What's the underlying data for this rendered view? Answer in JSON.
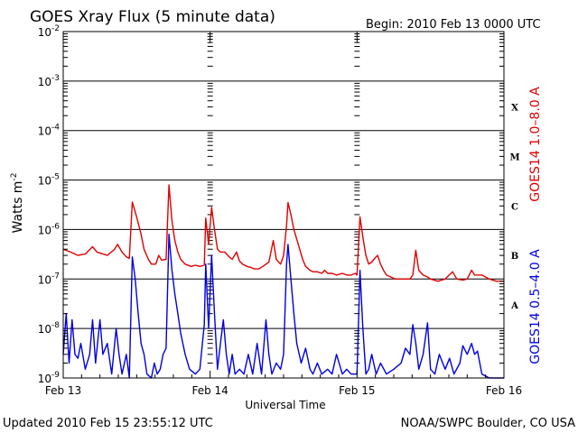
{
  "header": {
    "title": "GOES Xray Flux (5 minute data)",
    "begin": "Begin:  2010 Feb 13 0000 UTC"
  },
  "footer": {
    "updated": "Updated 2010 Feb 15 23:55:12 UTC",
    "credit": "NOAA/SWPC Boulder, CO USA"
  },
  "chart_data": {
    "type": "line",
    "title": "GOES Xray Flux (5 minute data)",
    "xlabel": "Universal Time",
    "ylabel": "Watts m",
    "ylabel_sup": "-2",
    "yscale": "log",
    "ylim": [
      1e-09,
      0.01
    ],
    "yticks": [
      {
        "v": 0.01,
        "base": "10",
        "exp": "-2"
      },
      {
        "v": 0.001,
        "base": "10",
        "exp": "-3"
      },
      {
        "v": 0.0001,
        "base": "10",
        "exp": "-4"
      },
      {
        "v": 1e-05,
        "base": "10",
        "exp": "-5"
      },
      {
        "v": 1e-06,
        "base": "10",
        "exp": "-6"
      },
      {
        "v": 1e-07,
        "base": "10",
        "exp": "-7"
      },
      {
        "v": 1e-08,
        "base": "10",
        "exp": "-8"
      },
      {
        "v": 1e-09,
        "base": "10",
        "exp": "-9"
      }
    ],
    "xlim_days": [
      0,
      3
    ],
    "xticks": [
      {
        "d": 0,
        "label": "Feb 13"
      },
      {
        "d": 1,
        "label": "Feb 14"
      },
      {
        "d": 2,
        "label": "Feb 15"
      },
      {
        "d": 3,
        "label": "Feb 16"
      }
    ],
    "classes": [
      {
        "label": "X",
        "v": 0.0003
      },
      {
        "label": "M",
        "v": 3e-05
      },
      {
        "label": "C",
        "v": 3e-06
      },
      {
        "label": "B",
        "v": 3e-07
      },
      {
        "label": "A",
        "v": 3e-08
      }
    ],
    "grid": true,
    "series": [
      {
        "name": "GOES14 1.0–8.0 A",
        "color": "#e00000",
        "points": [
          [
            0.0,
            4e-07
          ],
          [
            0.05,
            3.5e-07
          ],
          [
            0.1,
            3e-07
          ],
          [
            0.15,
            3.2e-07
          ],
          [
            0.2,
            4.5e-07
          ],
          [
            0.23,
            3.5e-07
          ],
          [
            0.3,
            3e-07
          ],
          [
            0.35,
            4e-07
          ],
          [
            0.37,
            5e-07
          ],
          [
            0.4,
            3.5e-07
          ],
          [
            0.43,
            2.8e-07
          ],
          [
            0.45,
            2.6e-07
          ],
          [
            0.47,
            3.6e-06
          ],
          [
            0.5,
            1.8e-06
          ],
          [
            0.53,
            8e-07
          ],
          [
            0.55,
            4e-07
          ],
          [
            0.58,
            2.5e-07
          ],
          [
            0.6,
            2e-07
          ],
          [
            0.63,
            2e-07
          ],
          [
            0.65,
            3e-07
          ],
          [
            0.67,
            2.4e-07
          ],
          [
            0.7,
            2.5e-07
          ],
          [
            0.72,
            8e-06
          ],
          [
            0.74,
            1.5e-06
          ],
          [
            0.76,
            6e-07
          ],
          [
            0.78,
            3.5e-07
          ],
          [
            0.8,
            2.5e-07
          ],
          [
            0.83,
            2e-07
          ],
          [
            0.87,
            1.8e-07
          ],
          [
            0.9,
            1.9e-07
          ],
          [
            0.93,
            1.8e-07
          ],
          [
            0.96,
            1.9e-07
          ],
          [
            0.97,
            1.7e-06
          ],
          [
            0.99,
            5e-07
          ],
          [
            1.01,
            2.8e-06
          ],
          [
            1.03,
            1e-06
          ],
          [
            1.05,
            4e-07
          ],
          [
            1.07,
            3.5e-07
          ],
          [
            1.1,
            3.5e-07
          ],
          [
            1.13,
            2.8e-07
          ],
          [
            1.15,
            2.5e-07
          ],
          [
            1.18,
            3.5e-07
          ],
          [
            1.2,
            2.3e-07
          ],
          [
            1.22,
            2e-07
          ],
          [
            1.25,
            1.8e-07
          ],
          [
            1.28,
            1.7e-07
          ],
          [
            1.3,
            1.6e-07
          ],
          [
            1.33,
            1.6e-07
          ],
          [
            1.36,
            1.8e-07
          ],
          [
            1.38,
            2e-07
          ],
          [
            1.4,
            2.2e-07
          ],
          [
            1.43,
            6e-07
          ],
          [
            1.45,
            2.5e-07
          ],
          [
            1.48,
            2e-07
          ],
          [
            1.5,
            3e-07
          ],
          [
            1.52,
            1.2e-06
          ],
          [
            1.53,
            3.5e-06
          ],
          [
            1.55,
            2e-06
          ],
          [
            1.57,
            1e-06
          ],
          [
            1.6,
            5e-07
          ],
          [
            1.63,
            2.5e-07
          ],
          [
            1.65,
            1.8e-07
          ],
          [
            1.68,
            1.5e-07
          ],
          [
            1.7,
            1.4e-07
          ],
          [
            1.73,
            1.4e-07
          ],
          [
            1.76,
            1.3e-07
          ],
          [
            1.78,
            1.5e-07
          ],
          [
            1.8,
            1.3e-07
          ],
          [
            1.83,
            1.3e-07
          ],
          [
            1.86,
            1.2e-07
          ],
          [
            1.9,
            1.3e-07
          ],
          [
            1.93,
            1.2e-07
          ],
          [
            1.96,
            1.2e-07
          ],
          [
            1.99,
            1.3e-07
          ],
          [
            2.0,
            1.2e-07
          ],
          [
            2.02,
            1.8e-06
          ],
          [
            2.04,
            7e-07
          ],
          [
            2.06,
            3e-07
          ],
          [
            2.08,
            2e-07
          ],
          [
            2.1,
            2.2e-07
          ],
          [
            2.12,
            2.6e-07
          ],
          [
            2.14,
            3e-07
          ],
          [
            2.16,
            2e-07
          ],
          [
            2.18,
            1.5e-07
          ],
          [
            2.2,
            1.2e-07
          ],
          [
            2.23,
            1.1e-07
          ],
          [
            2.26,
            1e-07
          ],
          [
            2.3,
            1e-07
          ],
          [
            2.33,
            1e-07
          ],
          [
            2.36,
            1e-07
          ],
          [
            2.38,
            1.2e-07
          ],
          [
            2.4,
            3.8e-07
          ],
          [
            2.42,
            1.5e-07
          ],
          [
            2.45,
            1.2e-07
          ],
          [
            2.48,
            1.1e-07
          ],
          [
            2.5,
            1e-07
          ],
          [
            2.55,
            9e-08
          ],
          [
            2.6,
            1e-07
          ],
          [
            2.65,
            1.4e-07
          ],
          [
            2.68,
            1e-07
          ],
          [
            2.72,
            9.5e-08
          ],
          [
            2.75,
            1e-07
          ],
          [
            2.78,
            1.5e-07
          ],
          [
            2.8,
            1.2e-07
          ],
          [
            2.85,
            1.2e-07
          ],
          [
            2.9,
            1e-07
          ],
          [
            2.95,
            9e-08
          ],
          [
            3.0,
            9e-08
          ]
        ]
      },
      {
        "name": "GOES14 0.5–4.0 A",
        "color": "#0000e0",
        "points": [
          [
            0.0,
            3e-09
          ],
          [
            0.02,
            2e-08
          ],
          [
            0.04,
            2e-09
          ],
          [
            0.06,
            1.5e-08
          ],
          [
            0.08,
            3e-09
          ],
          [
            0.1,
            2.5e-09
          ],
          [
            0.12,
            5e-09
          ],
          [
            0.15,
            1.5e-09
          ],
          [
            0.18,
            3e-09
          ],
          [
            0.2,
            1.5e-08
          ],
          [
            0.22,
            2e-09
          ],
          [
            0.25,
            1.5e-08
          ],
          [
            0.27,
            3e-09
          ],
          [
            0.3,
            5e-09
          ],
          [
            0.33,
            1.2e-09
          ],
          [
            0.36,
            1e-08
          ],
          [
            0.38,
            3e-09
          ],
          [
            0.4,
            1.2e-09
          ],
          [
            0.43,
            3e-09
          ],
          [
            0.45,
            1e-09
          ],
          [
            0.47,
            2.8e-07
          ],
          [
            0.49,
            1e-07
          ],
          [
            0.51,
            2e-08
          ],
          [
            0.53,
            5e-09
          ],
          [
            0.55,
            3e-09
          ],
          [
            0.57,
            1.2e-09
          ],
          [
            0.6,
            1e-09
          ],
          [
            0.62,
            2e-09
          ],
          [
            0.64,
            1.2e-09
          ],
          [
            0.66,
            1.5e-09
          ],
          [
            0.68,
            3e-09
          ],
          [
            0.7,
            4e-09
          ],
          [
            0.72,
            8e-07
          ],
          [
            0.74,
            1.5e-07
          ],
          [
            0.76,
            5e-08
          ],
          [
            0.78,
            2e-08
          ],
          [
            0.8,
            8e-09
          ],
          [
            0.83,
            3e-09
          ],
          [
            0.86,
            1.5e-09
          ],
          [
            0.9,
            1.2e-09
          ],
          [
            0.93,
            1.5e-09
          ],
          [
            0.96,
            1.2e-08
          ],
          [
            0.97,
            2e-07
          ],
          [
            0.99,
            1e-08
          ],
          [
            1.01,
            3e-07
          ],
          [
            1.03,
            2e-08
          ],
          [
            1.05,
            1.5e-09
          ],
          [
            1.07,
            5e-09
          ],
          [
            1.09,
            1.5e-08
          ],
          [
            1.11,
            3e-09
          ],
          [
            1.13,
            1.2e-09
          ],
          [
            1.15,
            3e-09
          ],
          [
            1.17,
            1.2e-09
          ],
          [
            1.2,
            1.5e-09
          ],
          [
            1.23,
            1.2e-09
          ],
          [
            1.26,
            3e-09
          ],
          [
            1.29,
            1.2e-09
          ],
          [
            1.32,
            5e-09
          ],
          [
            1.35,
            1.2e-09
          ],
          [
            1.38,
            1.5e-08
          ],
          [
            1.4,
            3e-09
          ],
          [
            1.42,
            1.2e-09
          ],
          [
            1.45,
            2e-09
          ],
          [
            1.48,
            1.5e-09
          ],
          [
            1.5,
            3e-09
          ],
          [
            1.52,
            2e-07
          ],
          [
            1.53,
            5e-07
          ],
          [
            1.55,
            1e-07
          ],
          [
            1.57,
            2e-08
          ],
          [
            1.59,
            5e-09
          ],
          [
            1.62,
            2e-09
          ],
          [
            1.65,
            4e-09
          ],
          [
            1.68,
            1.5e-09
          ],
          [
            1.7,
            1.2e-09
          ],
          [
            1.73,
            2e-09
          ],
          [
            1.76,
            1.2e-09
          ],
          [
            1.8,
            1.5e-09
          ],
          [
            1.83,
            1.2e-09
          ],
          [
            1.86,
            3e-09
          ],
          [
            1.9,
            1.2e-09
          ],
          [
            1.93,
            1.5e-09
          ],
          [
            1.96,
            1.2e-09
          ],
          [
            1.99,
            1.2e-09
          ],
          [
            2.0,
            1.2e-09
          ],
          [
            2.02,
            1.5e-07
          ],
          [
            2.04,
            1e-08
          ],
          [
            2.06,
            1.2e-09
          ],
          [
            2.08,
            1.5e-09
          ],
          [
            2.1,
            3e-09
          ],
          [
            2.13,
            1.2e-09
          ],
          [
            2.16,
            2e-09
          ],
          [
            2.2,
            1.2e-09
          ],
          [
            2.25,
            1.5e-09
          ],
          [
            2.3,
            2e-09
          ],
          [
            2.33,
            4e-09
          ],
          [
            2.36,
            3e-09
          ],
          [
            2.38,
            1.2e-08
          ],
          [
            2.4,
            5e-09
          ],
          [
            2.42,
            1.5e-09
          ],
          [
            2.45,
            3e-09
          ],
          [
            2.48,
            1.3e-08
          ],
          [
            2.5,
            1.5e-09
          ],
          [
            2.53,
            1.2e-09
          ],
          [
            2.56,
            3e-09
          ],
          [
            2.6,
            1.5e-09
          ],
          [
            2.63,
            2.5e-09
          ],
          [
            2.66,
            1.2e-09
          ],
          [
            2.7,
            2e-09
          ],
          [
            2.72,
            4.5e-09
          ],
          [
            2.75,
            3e-09
          ],
          [
            2.78,
            5e-09
          ],
          [
            2.8,
            3e-09
          ],
          [
            2.82,
            3.5e-09
          ],
          [
            2.85,
            1.2e-09
          ],
          [
            2.9,
            1e-09
          ],
          [
            2.95,
            1e-09
          ],
          [
            3.0,
            1e-09
          ]
        ]
      }
    ]
  }
}
